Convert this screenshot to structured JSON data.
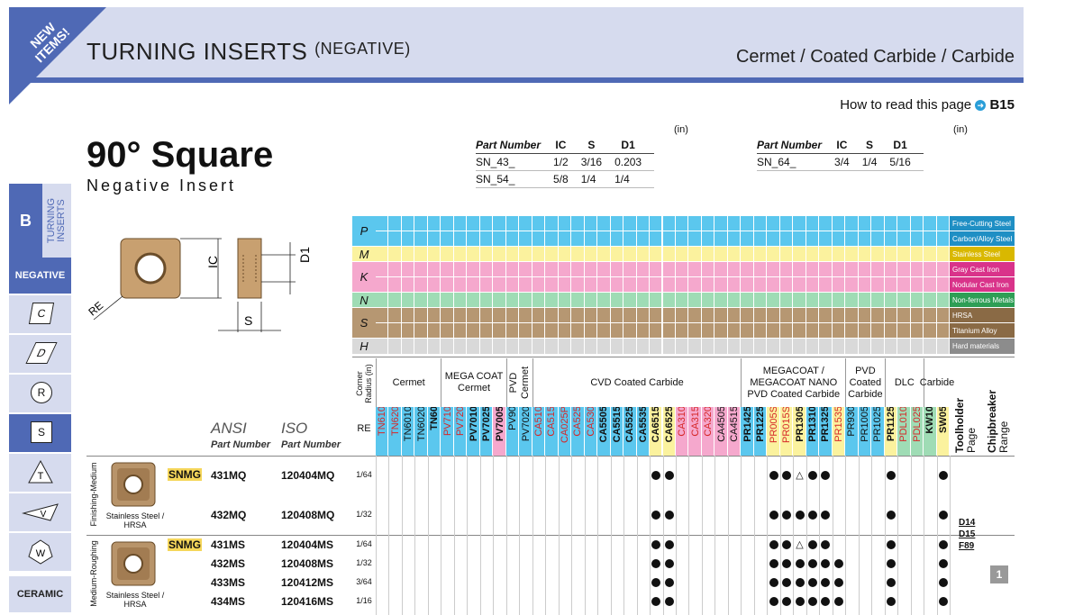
{
  "header": {
    "badge": "NEW ITEMS!",
    "title": "TURNING INSERTS",
    "title_suffix": "(NEGATIVE)",
    "category": "Cermet / Coated Carbide / Carbide",
    "howto_text": "How to read this page",
    "howto_ref": "B15"
  },
  "product": {
    "name": "90° Square",
    "subtitle": "Negative Insert"
  },
  "spec_tables": [
    {
      "unit": "(in)",
      "headers": [
        "Part Number",
        "IC",
        "S",
        "D1"
      ],
      "rows": [
        [
          "SN_43_",
          "1/2",
          "3/16",
          "0.203"
        ],
        [
          "SN_54_",
          "5/8",
          "1/4",
          "1/4"
        ]
      ]
    },
    {
      "unit": "(in)",
      "headers": [
        "Part Number",
        "IC",
        "S",
        "D1"
      ],
      "rows": [
        [
          "SN_64_",
          "3/4",
          "1/4",
          "5/16"
        ]
      ]
    }
  ],
  "diagram": {
    "ic": "IC",
    "re": "RE",
    "s": "S",
    "d1": "D1"
  },
  "sidebar": {
    "section": "B",
    "tab": "TURNING INSERTS",
    "subsection": "NEGATIVE",
    "shapes": [
      "C",
      "D",
      "R",
      "S",
      "T",
      "V",
      "W"
    ],
    "bottom": "CERAMIC"
  },
  "materials": [
    {
      "code": "P",
      "color": "#5bc7ee",
      "legend": [
        "Free-Cutting Steel",
        "Carbon/Alloy Steel"
      ],
      "legend_color": "#1f8fc4"
    },
    {
      "code": "M",
      "color": "#fbf29e",
      "legend": [
        "Stainless Steel"
      ],
      "legend_color": "#d9b800"
    },
    {
      "code": "K",
      "color": "#f5a8cd",
      "legend": [
        "Gray Cast Iron",
        "Nodular Cast Iron"
      ],
      "legend_color": "#d9338a"
    },
    {
      "code": "N",
      "color": "#9fdcb5",
      "legend": [
        "Non-ferrous Metals"
      ],
      "legend_color": "#2e9e55"
    },
    {
      "code": "S",
      "color": "#b69772",
      "legend": [
        "HRSA",
        "Titanium Alloy"
      ],
      "legend_color": "#8a6a45"
    },
    {
      "code": "H",
      "color": "#d9d9d9",
      "legend": [
        "Hard materials"
      ],
      "legend_color": "#8c8c8c"
    }
  ],
  "grade_groups": [
    {
      "label": "Cermet"
    },
    {
      "label": "MEGA COAT Cermet"
    },
    {
      "label": "PVD Cermet"
    },
    {
      "label": "CVD Coated Carbide"
    },
    {
      "label": "MEGACOAT / MEGACOAT NANO PVD Coated Carbide"
    },
    {
      "label": "PVD Coated Carbide"
    },
    {
      "label": "DLC"
    },
    {
      "label": "Carbide"
    }
  ],
  "corner_radius_label": "Corner Radius (in)",
  "re_label": "RE",
  "ansi_label": "ANSI",
  "iso_label": "ISO",
  "part_number_label": "Part Number",
  "grades": [
    "TN610",
    "TN620",
    "TN6010",
    "TN6020",
    "TN60",
    "PV710",
    "PV720",
    "PV7010",
    "PV7025",
    "PV7005",
    "PV90",
    "PV7020",
    "CA510",
    "CA515",
    "CA025P",
    "CA525",
    "CA530",
    "CA5505",
    "CA5515",
    "CA5525",
    "CA5535",
    "CA6515",
    "CA6525",
    "CA310",
    "CA315",
    "CA320",
    "CA4505",
    "CA4515",
    "PR1425",
    "PR1225",
    "PR005S",
    "PR015S",
    "PR1305",
    "PR1310",
    "PR1325",
    "PR1535",
    "PR930",
    "PR1005",
    "PR1025",
    "PR1125",
    "PDL010",
    "PDL025",
    "KW10",
    "SW05"
  ],
  "toolholder_label": "Toolholder",
  "toolholder_sub": "Page",
  "chipbreaker_label": "Chipbreaker",
  "chipbreaker_sub": "Range",
  "groups": [
    {
      "category": "Finishing-Medium",
      "ansi": "SNMG",
      "caption": "Stainless Steel / HRSA",
      "rows": [
        {
          "ansi": "431MQ",
          "iso": "120404MQ",
          "re": "1/64"
        },
        {
          "ansi": "432MQ",
          "iso": "120408MQ",
          "re": "1/32"
        }
      ]
    },
    {
      "category": "Medium-Roughing",
      "ansi": "SNMG",
      "caption": "Stainless Steel / HRSA",
      "rows": [
        {
          "ansi": "431MS",
          "iso": "120404MS",
          "re": "1/64"
        },
        {
          "ansi": "432MS",
          "iso": "120408MS",
          "re": "1/32"
        },
        {
          "ansi": "433MS",
          "iso": "120412MS",
          "re": "3/64"
        },
        {
          "ansi": "434MS",
          "iso": "120416MS",
          "re": "1/16"
        }
      ]
    }
  ],
  "toolholder_pages": [
    "D14",
    "D15",
    "F89"
  ],
  "chipbreaker_range": "1"
}
